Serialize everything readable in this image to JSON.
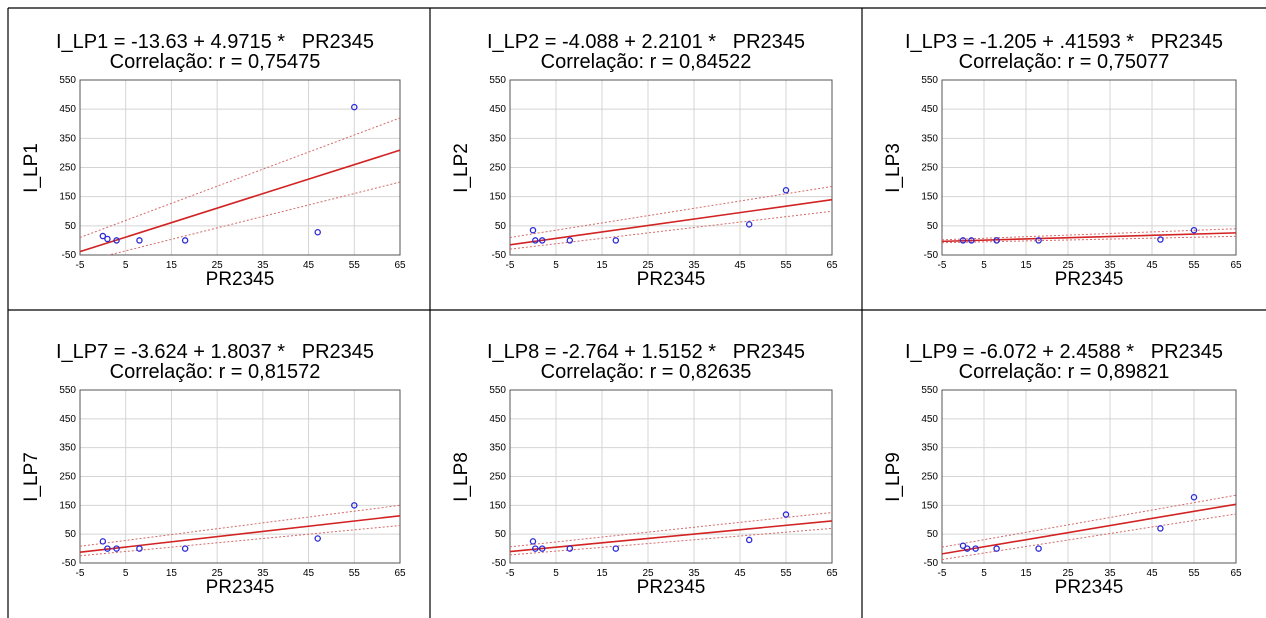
{
  "chart_data": [
    {
      "type": "scatter",
      "title": "I_LP1 = -13.63 + 4.9715 *   PR2345",
      "subtitle": "Correlação: r = 0,75475",
      "xlabel": "PR2345",
      "ylabel": "I_LP1",
      "xlim": [
        -5,
        65
      ],
      "ylim": [
        -50,
        550
      ],
      "xticks": [
        -5,
        5,
        15,
        25,
        35,
        45,
        55,
        65
      ],
      "yticks": [
        -50,
        50,
        150,
        250,
        350,
        450,
        550
      ],
      "grid": true,
      "points": [
        [
          0,
          15
        ],
        [
          1,
          5
        ],
        [
          3,
          0
        ],
        [
          8,
          0
        ],
        [
          18,
          0
        ],
        [
          47,
          28
        ],
        [
          55,
          457
        ]
      ],
      "fit": {
        "intercept": -13.63,
        "slope": 4.9715
      },
      "confidence": {
        "upper": [
          [
            -5,
            10
          ],
          [
            65,
            420
          ]
        ],
        "lower": [
          [
            -5,
            -75
          ],
          [
            65,
            200
          ]
        ]
      }
    },
    {
      "type": "scatter",
      "title": "I_LP2 = -4.088 + 2.2101 *   PR2345",
      "subtitle": "Correlação: r = 0,84522",
      "xlabel": "PR2345",
      "ylabel": "I_LP2",
      "xlim": [
        -5,
        65
      ],
      "ylim": [
        -50,
        550
      ],
      "xticks": [
        -5,
        5,
        15,
        25,
        35,
        45,
        55,
        65
      ],
      "yticks": [
        -50,
        50,
        150,
        250,
        350,
        450,
        550
      ],
      "grid": true,
      "points": [
        [
          0,
          35
        ],
        [
          0.5,
          0
        ],
        [
          2,
          0
        ],
        [
          8,
          0
        ],
        [
          18,
          0
        ],
        [
          47,
          55
        ],
        [
          55,
          172
        ]
      ],
      "fit": {
        "intercept": -4.088,
        "slope": 2.2101
      },
      "confidence": {
        "upper": [
          [
            -5,
            10
          ],
          [
            65,
            185
          ]
        ],
        "lower": [
          [
            -5,
            -30
          ],
          [
            65,
            100
          ]
        ]
      }
    },
    {
      "type": "scatter",
      "title": "I_LP3 = -1.205 + .41593 *   PR2345",
      "subtitle": "Correlação: r = 0,75077",
      "xlabel": "PR2345",
      "ylabel": "I_LP3",
      "xlim": [
        -5,
        65
      ],
      "ylim": [
        -50,
        550
      ],
      "xticks": [
        -5,
        5,
        15,
        25,
        35,
        45,
        55,
        65
      ],
      "yticks": [
        -50,
        50,
        150,
        250,
        350,
        450,
        550
      ],
      "grid": true,
      "points": [
        [
          0,
          0
        ],
        [
          2,
          0
        ],
        [
          8,
          0
        ],
        [
          18,
          0
        ],
        [
          47,
          3
        ],
        [
          55,
          35
        ]
      ],
      "fit": {
        "intercept": -1.205,
        "slope": 0.41593
      },
      "confidence": {
        "upper": [
          [
            -5,
            2
          ],
          [
            65,
            40
          ]
        ],
        "lower": [
          [
            -5,
            -8
          ],
          [
            65,
            14
          ]
        ]
      }
    },
    {
      "type": "scatter",
      "title": "I_LP7 = -3.624 + 1.8037 *   PR2345",
      "subtitle": "Correlação: r = 0,81572",
      "xlabel": "PR2345",
      "ylabel": "I_LP7",
      "xlim": [
        -5,
        65
      ],
      "ylim": [
        -50,
        550
      ],
      "xticks": [
        -5,
        5,
        15,
        25,
        35,
        45,
        55,
        65
      ],
      "yticks": [
        -50,
        50,
        150,
        250,
        350,
        450,
        550
      ],
      "grid": true,
      "points": [
        [
          0,
          25
        ],
        [
          1,
          0
        ],
        [
          3,
          0
        ],
        [
          8,
          0
        ],
        [
          18,
          0
        ],
        [
          47,
          35
        ],
        [
          55,
          150
        ]
      ],
      "fit": {
        "intercept": -3.624,
        "slope": 1.8037
      },
      "confidence": {
        "upper": [
          [
            -5,
            8
          ],
          [
            65,
            150
          ]
        ],
        "lower": [
          [
            -5,
            -25
          ],
          [
            65,
            80
          ]
        ]
      }
    },
    {
      "type": "scatter",
      "title": "I_LP8 = -2.764 + 1.5152 *   PR2345",
      "subtitle": "Correlação: r = 0,82635",
      "xlabel": "PR2345",
      "ylabel": "I_LP8",
      "xlim": [
        -5,
        65
      ],
      "ylim": [
        -50,
        550
      ],
      "xticks": [
        -5,
        5,
        15,
        25,
        35,
        45,
        55,
        65
      ],
      "yticks": [
        -50,
        50,
        150,
        250,
        350,
        450,
        550
      ],
      "grid": true,
      "points": [
        [
          0,
          25
        ],
        [
          0.5,
          0
        ],
        [
          2,
          0
        ],
        [
          8,
          0
        ],
        [
          18,
          0
        ],
        [
          47,
          30
        ],
        [
          55,
          118
        ]
      ],
      "fit": {
        "intercept": -2.764,
        "slope": 1.5152
      },
      "confidence": {
        "upper": [
          [
            -5,
            6
          ],
          [
            65,
            125
          ]
        ],
        "lower": [
          [
            -5,
            -22
          ],
          [
            65,
            70
          ]
        ]
      }
    },
    {
      "type": "scatter",
      "title": "I_LP9 = -6.072 + 2.4588 *   PR2345",
      "subtitle": "Correlação: r = 0,89821",
      "xlabel": "PR2345",
      "ylabel": "I_LP9",
      "xlim": [
        -5,
        65
      ],
      "ylim": [
        -50,
        550
      ],
      "xticks": [
        -5,
        5,
        15,
        25,
        35,
        45,
        55,
        65
      ],
      "yticks": [
        -50,
        50,
        150,
        250,
        350,
        450,
        550
      ],
      "grid": true,
      "points": [
        [
          0,
          10
        ],
        [
          1,
          0
        ],
        [
          3,
          0
        ],
        [
          8,
          0
        ],
        [
          18,
          0
        ],
        [
          47,
          70
        ],
        [
          55,
          178
        ]
      ],
      "fit": {
        "intercept": -6.072,
        "slope": 2.4588
      },
      "confidence": {
        "upper": [
          [
            -5,
            5
          ],
          [
            65,
            185
          ]
        ],
        "lower": [
          [
            -5,
            -38
          ],
          [
            65,
            120
          ]
        ]
      }
    }
  ]
}
